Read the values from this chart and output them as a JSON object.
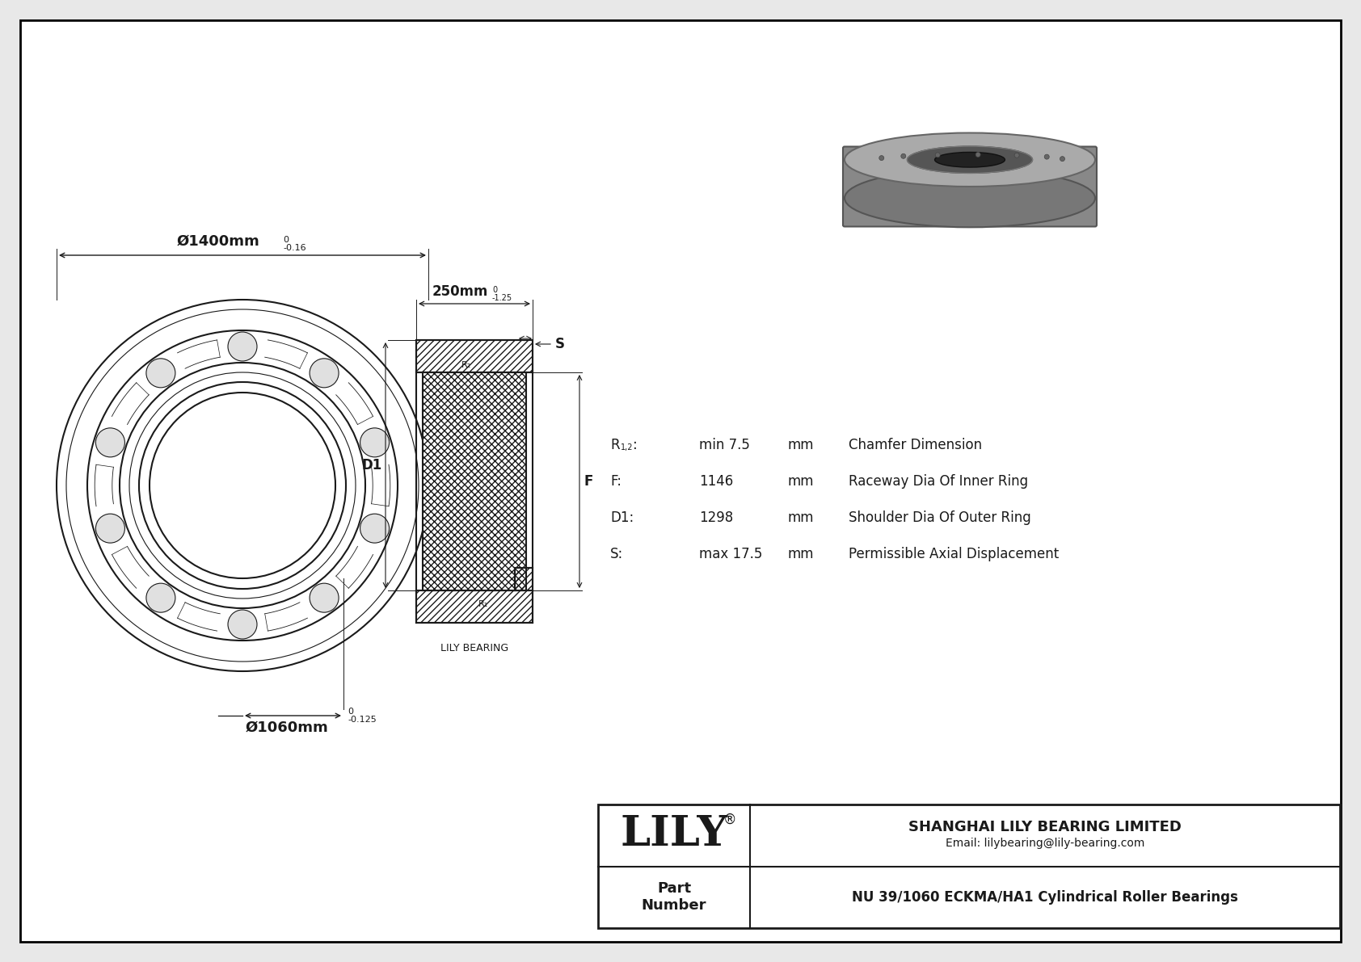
{
  "bg_color": "#e8e8e8",
  "drawing_bg": "#ffffff",
  "border_color": "#000000",
  "line_color": "#1a1a1a",
  "outer_dia": "1400",
  "outer_tol_upper": "0",
  "outer_tol_lower": "-0.16",
  "inner_dia": "1060",
  "inner_tol_upper": "0",
  "inner_tol_lower": "-0.125",
  "width_dim": "250",
  "width_tol_upper": "0",
  "width_tol_lower": "-1.25",
  "r12_label": "R1,2:",
  "r12_value": "min 7.5",
  "r12_unit": "mm",
  "r12_desc": "Chamfer Dimension",
  "f_label": "F:",
  "f_value": "1146",
  "f_unit": "mm",
  "f_desc": "Raceway Dia Of Inner Ring",
  "d1_label": "D1:",
  "d1_value": "1298",
  "d1_unit": "mm",
  "d1_desc": "Shoulder Dia Of Outer Ring",
  "s_label": "S:",
  "s_value": "max 17.5",
  "s_unit": "mm",
  "s_desc": "Permissible Axial Displacement",
  "company_name": "LILY",
  "company_reg": "®",
  "company_full": "SHANGHAI LILY BEARING LIMITED",
  "company_email": "Email: lilybearing@lily-bearing.com",
  "part_label": "Part\nNumber",
  "part_number": "NU 39/1060 ECKMA/HA1 Cylindrical Roller Bearings",
  "lily_bearing_label": "LILY BEARING"
}
